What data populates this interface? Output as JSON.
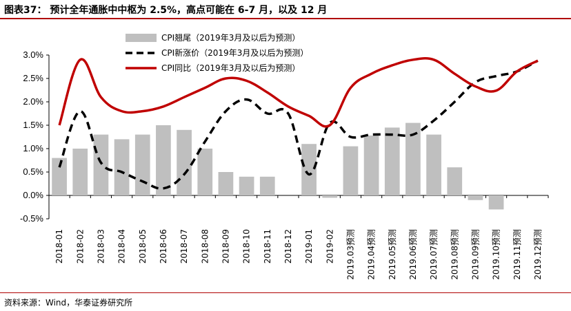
{
  "header": {
    "title": "图表37：  预计全年通胀中中枢为 2.5%，高点可能在 6-7 月，以及 12 月"
  },
  "footer": {
    "source": "资料来源：Wind，华泰证券研究所"
  },
  "colors": {
    "bar": "#bfbfbf",
    "new_price": "#000000",
    "yoy": "#c00000",
    "accent": "#b00000"
  },
  "chart_data": {
    "type": "bar",
    "categories": [
      "2018-01",
      "2018-02",
      "2018-03",
      "2018-04",
      "2018-05",
      "2018-06",
      "2018-07",
      "2018-08",
      "2018-09",
      "2018-10",
      "2018-11",
      "2018-12",
      "2019-01",
      "2019-02",
      "2019.03预测",
      "2019.04预测",
      "2019.05预测",
      "2019.06预测",
      "2019.07预测",
      "2019.08预测",
      "2019.09预测",
      "2019.10预测",
      "2019.11预测",
      "2019.12预测"
    ],
    "ylim": [
      -0.5,
      3.0
    ],
    "yticks": [
      "3.0%",
      "2.5%",
      "2.0%",
      "1.5%",
      "1.0%",
      "0.5%",
      "0.0%",
      "-0.5%"
    ],
    "grid": false,
    "legend_position": "top-center",
    "series": [
      {
        "name": "CPI翘尾（2019年3月及以后为预测）",
        "type": "bar",
        "values": [
          0.8,
          1.0,
          1.3,
          1.2,
          1.3,
          1.5,
          1.4,
          1.0,
          0.5,
          0.4,
          0.4,
          0.0,
          1.1,
          -0.05,
          1.05,
          1.28,
          1.45,
          1.55,
          1.3,
          0.6,
          -0.1,
          -0.3,
          0.0,
          0.0
        ]
      },
      {
        "name": "CPI新涨价（2019年3月及以后为预测）",
        "type": "line-dashed",
        "values": [
          0.6,
          1.8,
          0.7,
          0.5,
          0.3,
          0.15,
          0.45,
          1.15,
          1.8,
          2.05,
          1.75,
          1.75,
          0.45,
          1.55,
          1.25,
          1.3,
          1.3,
          1.3,
          1.6,
          2.0,
          2.42,
          2.55,
          2.65,
          2.88
        ]
      },
      {
        "name": "CPI同比（2019年3月及以后为预测）",
        "type": "line",
        "values": [
          1.5,
          2.9,
          2.1,
          1.8,
          1.8,
          1.9,
          2.1,
          2.3,
          2.5,
          2.45,
          2.2,
          1.9,
          1.7,
          1.5,
          2.3,
          2.6,
          2.78,
          2.9,
          2.9,
          2.6,
          2.33,
          2.24,
          2.65,
          2.88
        ]
      }
    ]
  }
}
